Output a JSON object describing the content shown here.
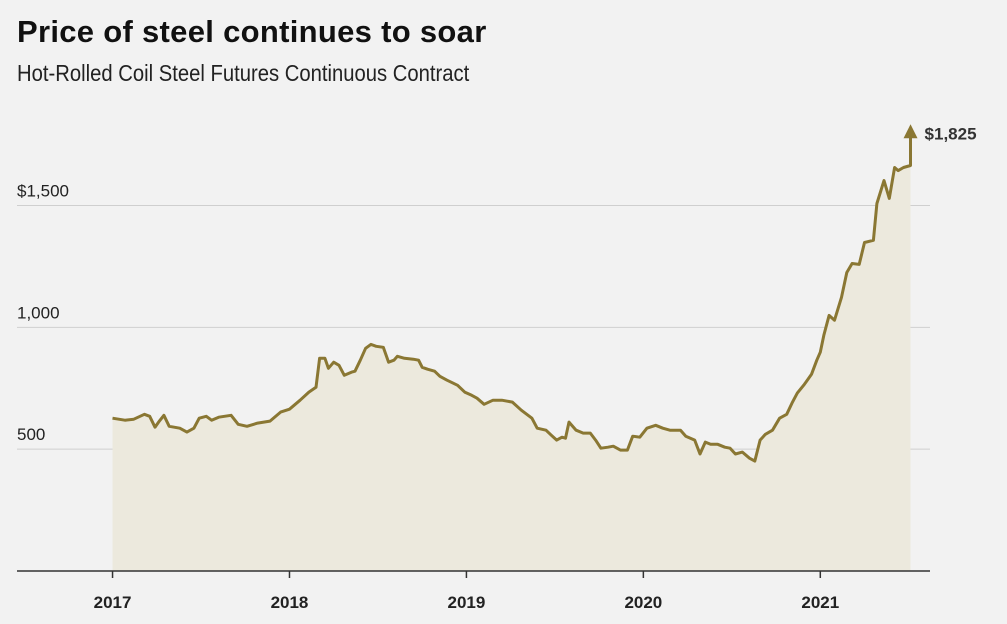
{
  "colors": {
    "background": "#f2f2f2",
    "line": "#8a7733",
    "area": "#ece9dd",
    "grid": "#cfcfcf",
    "axis": "#333333"
  },
  "chart_data": {
    "type": "area",
    "title": "Price of steel continues to soar",
    "subtitle": "Hot-Rolled Coil Steel Futures Continuous Contract",
    "xlabel": "",
    "ylabel": "",
    "xlim": [
      2016.46,
      2021.62
    ],
    "ylim": [
      0,
      1900
    ],
    "grid": true,
    "y_ticks": [
      {
        "value": 500,
        "label": "500"
      },
      {
        "value": 1000,
        "label": "1,000"
      },
      {
        "value": 1500,
        "label": "$1,500"
      }
    ],
    "x_ticks": [
      {
        "value": 2017,
        "label": "2017"
      },
      {
        "value": 2018,
        "label": "2018"
      },
      {
        "value": 2019,
        "label": "2019"
      },
      {
        "value": 2020,
        "label": "2020"
      },
      {
        "value": 2021,
        "label": "2021"
      }
    ],
    "end_annotation": {
      "value": 1825,
      "label": "$1,825"
    },
    "series": [
      {
        "name": "Hot-Rolled Coil Steel Futures",
        "points": [
          [
            2017.0,
            627
          ],
          [
            2017.07,
            619
          ],
          [
            2017.12,
            623
          ],
          [
            2017.18,
            643
          ],
          [
            2017.21,
            635
          ],
          [
            2017.24,
            590
          ],
          [
            2017.26,
            611
          ],
          [
            2017.29,
            639
          ],
          [
            2017.32,
            594
          ],
          [
            2017.38,
            586
          ],
          [
            2017.42,
            570
          ],
          [
            2017.46,
            586
          ],
          [
            2017.49,
            627
          ],
          [
            2017.53,
            635
          ],
          [
            2017.56,
            619
          ],
          [
            2017.6,
            631
          ],
          [
            2017.67,
            639
          ],
          [
            2017.71,
            602
          ],
          [
            2017.76,
            594
          ],
          [
            2017.82,
            607
          ],
          [
            2017.89,
            615
          ],
          [
            2017.95,
            652
          ],
          [
            2018.0,
            664
          ],
          [
            2018.06,
            701
          ],
          [
            2018.11,
            734
          ],
          [
            2018.15,
            754
          ],
          [
            2018.17,
            873
          ],
          [
            2018.2,
            873
          ],
          [
            2018.22,
            832
          ],
          [
            2018.25,
            857
          ],
          [
            2018.28,
            844
          ],
          [
            2018.31,
            803
          ],
          [
            2018.35,
            816
          ],
          [
            2018.37,
            820
          ],
          [
            2018.4,
            865
          ],
          [
            2018.43,
            914
          ],
          [
            2018.46,
            930
          ],
          [
            2018.49,
            922
          ],
          [
            2018.53,
            918
          ],
          [
            2018.56,
            857
          ],
          [
            2018.59,
            865
          ],
          [
            2018.61,
            881
          ],
          [
            2018.65,
            873
          ],
          [
            2018.7,
            869
          ],
          [
            2018.73,
            865
          ],
          [
            2018.75,
            836
          ],
          [
            2018.78,
            828
          ],
          [
            2018.82,
            820
          ],
          [
            2018.85,
            799
          ],
          [
            2018.89,
            783
          ],
          [
            2018.95,
            762
          ],
          [
            2018.99,
            734
          ],
          [
            2019.03,
            721
          ],
          [
            2019.06,
            709
          ],
          [
            2019.1,
            684
          ],
          [
            2019.15,
            701
          ],
          [
            2019.2,
            701
          ],
          [
            2019.26,
            693
          ],
          [
            2019.31,
            660
          ],
          [
            2019.37,
            627
          ],
          [
            2019.4,
            586
          ],
          [
            2019.45,
            578
          ],
          [
            2019.48,
            557
          ],
          [
            2019.51,
            537
          ],
          [
            2019.54,
            549
          ],
          [
            2019.56,
            545
          ],
          [
            2019.58,
            611
          ],
          [
            2019.62,
            578
          ],
          [
            2019.66,
            566
          ],
          [
            2019.7,
            566
          ],
          [
            2019.73,
            537
          ],
          [
            2019.76,
            504
          ],
          [
            2019.8,
            508
          ],
          [
            2019.83,
            512
          ],
          [
            2019.87,
            496
          ],
          [
            2019.91,
            496
          ],
          [
            2019.94,
            553
          ],
          [
            2019.98,
            549
          ],
          [
            2020.02,
            586
          ],
          [
            2020.07,
            598
          ],
          [
            2020.11,
            586
          ],
          [
            2020.15,
            578
          ],
          [
            2020.21,
            578
          ],
          [
            2020.24,
            553
          ],
          [
            2020.29,
            537
          ],
          [
            2020.32,
            480
          ],
          [
            2020.35,
            529
          ],
          [
            2020.38,
            520
          ],
          [
            2020.42,
            520
          ],
          [
            2020.46,
            508
          ],
          [
            2020.49,
            504
          ],
          [
            2020.52,
            480
          ],
          [
            2020.56,
            488
          ],
          [
            2020.6,
            463
          ],
          [
            2020.63,
            451
          ],
          [
            2020.66,
            537
          ],
          [
            2020.69,
            561
          ],
          [
            2020.73,
            578
          ],
          [
            2020.77,
            627
          ],
          [
            2020.81,
            643
          ],
          [
            2020.84,
            689
          ],
          [
            2020.87,
            730
          ],
          [
            2020.91,
            766
          ],
          [
            2020.95,
            807
          ],
          [
            2020.98,
            865
          ],
          [
            2021.0,
            898
          ],
          [
            2021.02,
            967
          ],
          [
            2021.05,
            1049
          ],
          [
            2021.08,
            1029
          ],
          [
            2021.12,
            1123
          ],
          [
            2021.15,
            1225
          ],
          [
            2021.18,
            1262
          ],
          [
            2021.22,
            1258
          ],
          [
            2021.25,
            1348
          ],
          [
            2021.3,
            1357
          ],
          [
            2021.32,
            1508
          ],
          [
            2021.36,
            1602
          ],
          [
            2021.39,
            1529
          ],
          [
            2021.42,
            1656
          ],
          [
            2021.44,
            1643
          ],
          [
            2021.47,
            1656
          ],
          [
            2021.51,
            1664
          ],
          [
            2021.51,
            1825
          ]
        ]
      }
    ]
  }
}
